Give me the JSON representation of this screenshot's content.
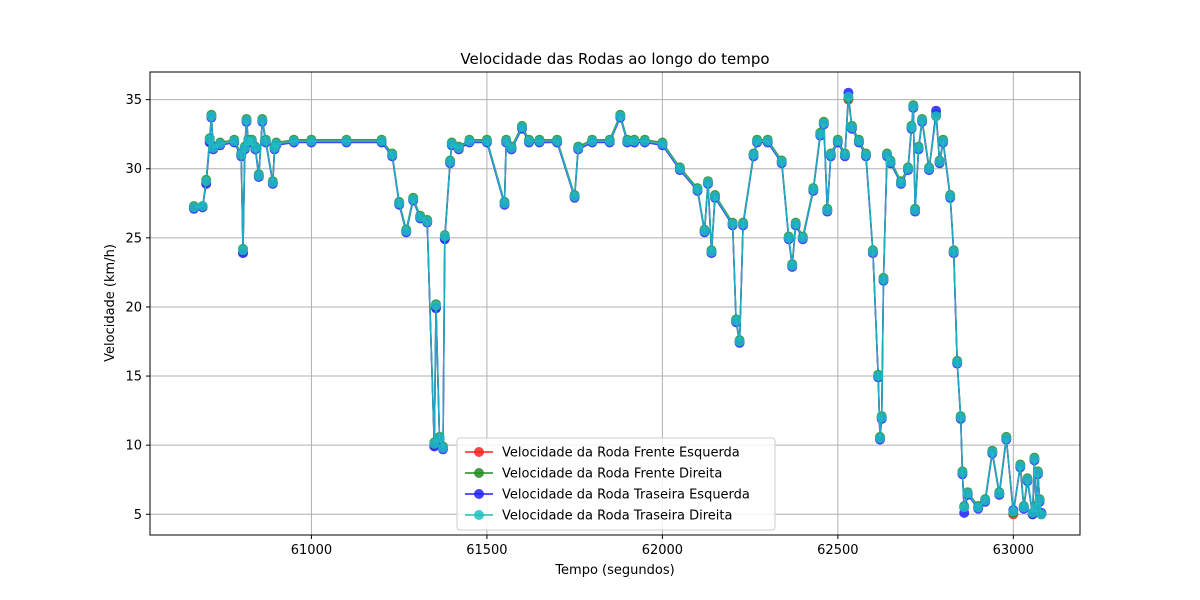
{
  "chart_data": {
    "type": "line",
    "title": "Velocidade das Rodas ao longo do tempo",
    "xlabel": "Tempo (segundos)",
    "ylabel": "Velocidade (km/h)",
    "xlim": [
      60540,
      63190
    ],
    "ylim": [
      3.5,
      37
    ],
    "xticks": [
      61000,
      61500,
      62000,
      62500,
      63000
    ],
    "yticks": [
      5,
      10,
      15,
      20,
      25,
      30,
      35
    ],
    "grid": true,
    "legend_position": "lower-center",
    "marker": "circle",
    "x": [
      60665,
      60690,
      60700,
      60710,
      60715,
      60720,
      60740,
      60780,
      60800,
      60805,
      60810,
      60815,
      60820,
      60830,
      60840,
      60850,
      60860,
      60870,
      60890,
      60895,
      60900,
      60950,
      61000,
      61100,
      61200,
      61230,
      61250,
      61270,
      61290,
      61310,
      61330,
      61350,
      61355,
      61365,
      61375,
      61380,
      61395,
      61400,
      61420,
      61450,
      61500,
      61550,
      61555,
      61570,
      61600,
      61620,
      61650,
      61700,
      61750,
      61760,
      61800,
      61850,
      61880,
      61900,
      61920,
      61950,
      62000,
      62050,
      62100,
      62120,
      62130,
      62140,
      62150,
      62200,
      62210,
      62220,
      62230,
      62260,
      62270,
      62300,
      62340,
      62360,
      62370,
      62380,
      62400,
      62430,
      62450,
      62460,
      62470,
      62480,
      62500,
      62520,
      62530,
      62540,
      62560,
      62580,
      62600,
      62615,
      62620,
      62625,
      62630,
      62640,
      62650,
      62680,
      62700,
      62710,
      62715,
      62720,
      62730,
      62740,
      62760,
      62780,
      62790,
      62800,
      62820,
      62830,
      62840,
      62850,
      62855,
      62860,
      62870,
      62900,
      62920,
      62940,
      62960,
      62980,
      63000,
      63020,
      63030,
      63040,
      63055,
      63060,
      63065,
      63070,
      63075,
      63080
    ],
    "series": [
      {
        "name": "Velocidade da Roda Frente Esquerda",
        "color": "#ff2020",
        "y": [
          27.2,
          27.3,
          29.0,
          32.0,
          33.8,
          31.5,
          31.8,
          32.0,
          31.0,
          24.0,
          31.5,
          33.5,
          32.0,
          32.0,
          31.5,
          29.5,
          33.5,
          32.0,
          29.0,
          31.5,
          31.8,
          32.0,
          32.0,
          32.0,
          32.0,
          31.0,
          27.5,
          25.5,
          27.8,
          26.5,
          26.2,
          10.0,
          20.0,
          10.5,
          9.8,
          25.0,
          30.5,
          31.8,
          31.5,
          32.0,
          32.0,
          27.5,
          32.0,
          31.5,
          33.0,
          32.0,
          32.0,
          32.0,
          28.0,
          31.5,
          32.0,
          32.0,
          33.8,
          32.0,
          32.0,
          32.0,
          31.8,
          30.0,
          28.5,
          25.5,
          29.0,
          24.0,
          28.0,
          26.0,
          19.0,
          17.5,
          26.0,
          31.0,
          32.0,
          32.0,
          30.5,
          25.0,
          23.0,
          26.0,
          25.0,
          28.5,
          32.5,
          33.3,
          27.0,
          31.0,
          32.0,
          31.0,
          35.0,
          33.0,
          32.0,
          31.0,
          24.0,
          15.0,
          10.5,
          12.0,
          22.0,
          31.0,
          30.5,
          29.0,
          30.0,
          33.0,
          34.5,
          27.0,
          31.5,
          33.5,
          30.0,
          33.8,
          30.5,
          32.0,
          28.0,
          24.0,
          16.0,
          12.0,
          8.0,
          5.5,
          6.5,
          5.5,
          6.0,
          9.5,
          6.5,
          10.5,
          5.0,
          8.5,
          5.5,
          7.5,
          5.0,
          9.0,
          5.5,
          8.0,
          6.0,
          5.0
        ]
      },
      {
        "name": "Velocidade da Roda Frente Direita",
        "color": "#228b22",
        "y": [
          27.3,
          27.3,
          29.2,
          32.2,
          33.9,
          31.6,
          31.9,
          32.1,
          31.1,
          24.2,
          31.6,
          33.6,
          32.1,
          32.1,
          31.6,
          29.6,
          33.6,
          32.1,
          29.1,
          31.6,
          31.9,
          32.1,
          32.1,
          32.1,
          32.1,
          31.1,
          27.6,
          25.6,
          27.9,
          26.6,
          26.3,
          10.2,
          20.2,
          10.6,
          9.9,
          25.2,
          30.6,
          31.9,
          31.6,
          32.1,
          32.1,
          27.6,
          32.1,
          31.6,
          33.1,
          32.1,
          32.1,
          32.1,
          28.1,
          31.6,
          32.1,
          32.1,
          33.9,
          32.1,
          32.1,
          32.1,
          31.9,
          30.1,
          28.6,
          25.6,
          29.1,
          24.1,
          28.1,
          26.1,
          19.1,
          17.6,
          26.1,
          31.1,
          32.1,
          32.1,
          30.6,
          25.1,
          23.1,
          26.1,
          25.1,
          28.6,
          32.6,
          33.4,
          27.1,
          31.1,
          32.1,
          31.1,
          35.1,
          33.1,
          32.1,
          31.1,
          24.1,
          15.1,
          10.6,
          12.1,
          22.1,
          31.1,
          30.6,
          29.1,
          30.1,
          33.1,
          34.6,
          27.1,
          31.6,
          33.6,
          30.1,
          33.9,
          30.6,
          32.1,
          28.1,
          24.1,
          16.1,
          12.1,
          8.1,
          5.6,
          6.6,
          5.6,
          6.1,
          9.6,
          6.6,
          10.6,
          5.1,
          8.6,
          5.6,
          7.6,
          5.1,
          9.1,
          5.6,
          8.1,
          6.1,
          5.0
        ]
      },
      {
        "name": "Velocidade da Roda Traseira Esquerda",
        "color": "#2020ff",
        "y": [
          27.1,
          27.2,
          28.9,
          31.9,
          33.7,
          31.4,
          31.7,
          31.9,
          30.9,
          23.9,
          31.4,
          33.4,
          31.9,
          31.9,
          31.4,
          29.4,
          33.4,
          31.9,
          28.9,
          31.4,
          31.7,
          31.9,
          31.9,
          31.9,
          31.9,
          30.9,
          27.4,
          25.4,
          27.7,
          26.4,
          26.1,
          9.9,
          19.9,
          10.4,
          9.7,
          24.9,
          30.4,
          31.7,
          31.4,
          31.9,
          31.9,
          27.4,
          31.9,
          31.4,
          32.9,
          31.9,
          31.9,
          31.9,
          27.9,
          31.4,
          31.9,
          31.9,
          33.7,
          31.9,
          31.9,
          31.9,
          31.7,
          29.9,
          28.4,
          25.4,
          28.9,
          23.9,
          27.9,
          25.9,
          18.9,
          17.4,
          25.9,
          30.9,
          31.9,
          31.9,
          30.4,
          24.9,
          22.9,
          25.9,
          24.9,
          28.4,
          32.4,
          33.2,
          26.9,
          30.9,
          31.9,
          30.9,
          35.5,
          32.9,
          31.9,
          30.9,
          23.9,
          14.9,
          10.4,
          11.9,
          21.9,
          30.9,
          30.4,
          28.9,
          29.9,
          32.9,
          34.4,
          26.9,
          31.4,
          33.4,
          29.9,
          34.2,
          30.4,
          31.9,
          27.9,
          23.9,
          15.9,
          11.9,
          7.9,
          5.1,
          6.4,
          5.4,
          5.9,
          9.4,
          6.4,
          10.4,
          5.3,
          8.4,
          5.4,
          7.4,
          5.0,
          8.9,
          5.4,
          7.9,
          5.9,
          5.1
        ]
      },
      {
        "name": "Velocidade da Roda Traseira Direita",
        "color": "#20c0c0",
        "y": [
          27.2,
          27.3,
          29.1,
          32.1,
          33.8,
          31.5,
          31.8,
          32.0,
          31.0,
          24.1,
          31.5,
          33.5,
          32.0,
          32.0,
          31.5,
          29.5,
          33.5,
          32.0,
          29.0,
          31.5,
          31.8,
          32.0,
          32.0,
          32.0,
          32.0,
          31.0,
          27.5,
          25.5,
          27.8,
          26.5,
          26.2,
          10.1,
          20.1,
          10.5,
          9.8,
          25.1,
          30.5,
          31.8,
          31.5,
          32.0,
          32.0,
          27.5,
          32.0,
          31.5,
          33.0,
          32.0,
          32.0,
          32.0,
          28.0,
          31.5,
          32.0,
          32.0,
          33.8,
          32.0,
          32.0,
          32.0,
          31.8,
          30.0,
          28.5,
          25.5,
          29.0,
          24.0,
          28.0,
          26.0,
          19.0,
          17.5,
          26.0,
          31.0,
          32.0,
          32.0,
          30.5,
          25.0,
          23.0,
          26.0,
          25.0,
          28.5,
          32.5,
          33.3,
          27.0,
          31.0,
          32.0,
          31.0,
          35.2,
          33.0,
          32.0,
          31.0,
          24.0,
          15.0,
          10.5,
          12.0,
          22.0,
          31.0,
          30.5,
          29.0,
          30.0,
          33.0,
          34.5,
          27.0,
          31.5,
          33.5,
          30.0,
          33.8,
          30.5,
          32.0,
          28.0,
          24.0,
          16.0,
          12.0,
          8.0,
          5.5,
          6.5,
          5.5,
          6.0,
          9.5,
          6.5,
          10.5,
          5.2,
          8.5,
          5.5,
          7.5,
          5.1,
          9.0,
          5.5,
          8.0,
          6.0,
          5.0
        ]
      }
    ]
  }
}
